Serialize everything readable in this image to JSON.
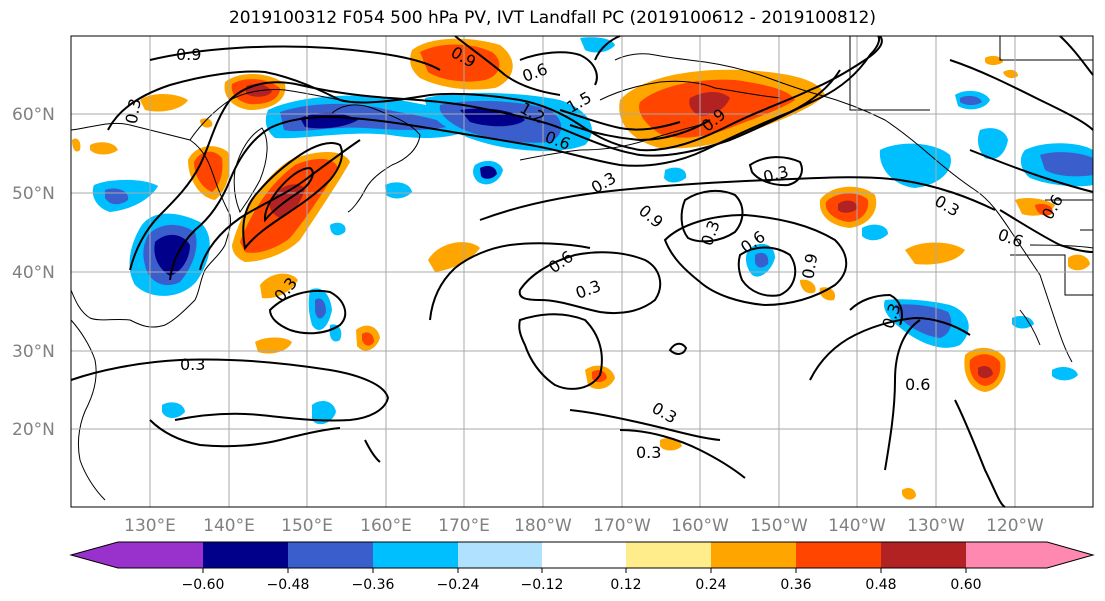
{
  "title": "2019100312 F054 500 hPa PV, IVT Landfall PC (2019100612 - 2019100812)",
  "lat_labels": [
    "60°N",
    "50°N",
    "40°N",
    "30°N",
    "20°N"
  ],
  "lon_labels": [
    "130°E",
    "140°E",
    "150°E",
    "160°E",
    "170°E",
    "180°W",
    "170°W",
    "160°W",
    "150°W",
    "140°W",
    "130°W",
    "120°W"
  ],
  "contour_labels": [
    "0.9",
    "0.3",
    "0.9",
    "0.6",
    "1.2",
    "1.5",
    "0.9",
    "0.6",
    "0.3",
    "0.3",
    "0.9",
    "0.3",
    "0.6",
    "0.3",
    "0.6",
    "0.9",
    "0.3",
    "0.6",
    "0.3",
    "0.3",
    "0.3",
    "0.6",
    "0.3",
    "0.6",
    "0.3"
  ],
  "colorbar": {
    "ticks": [
      "−0.60",
      "−0.48",
      "−0.36",
      "−0.24",
      "−0.12",
      "0.12",
      "0.24",
      "0.36",
      "0.48",
      "0.60"
    ],
    "colors": [
      "#9932cc",
      "#00008b",
      "#3a5fcd",
      "#00bfff",
      "#b0e2ff",
      "#ffffff",
      "#ffec8b",
      "#ffa500",
      "#ff4500",
      "#b22222",
      "#ff88b0"
    ]
  },
  "colors": {
    "contour": "#000000",
    "coast": "#000000",
    "grid": "#a9a9a9",
    "axis_label": "#808080"
  }
}
